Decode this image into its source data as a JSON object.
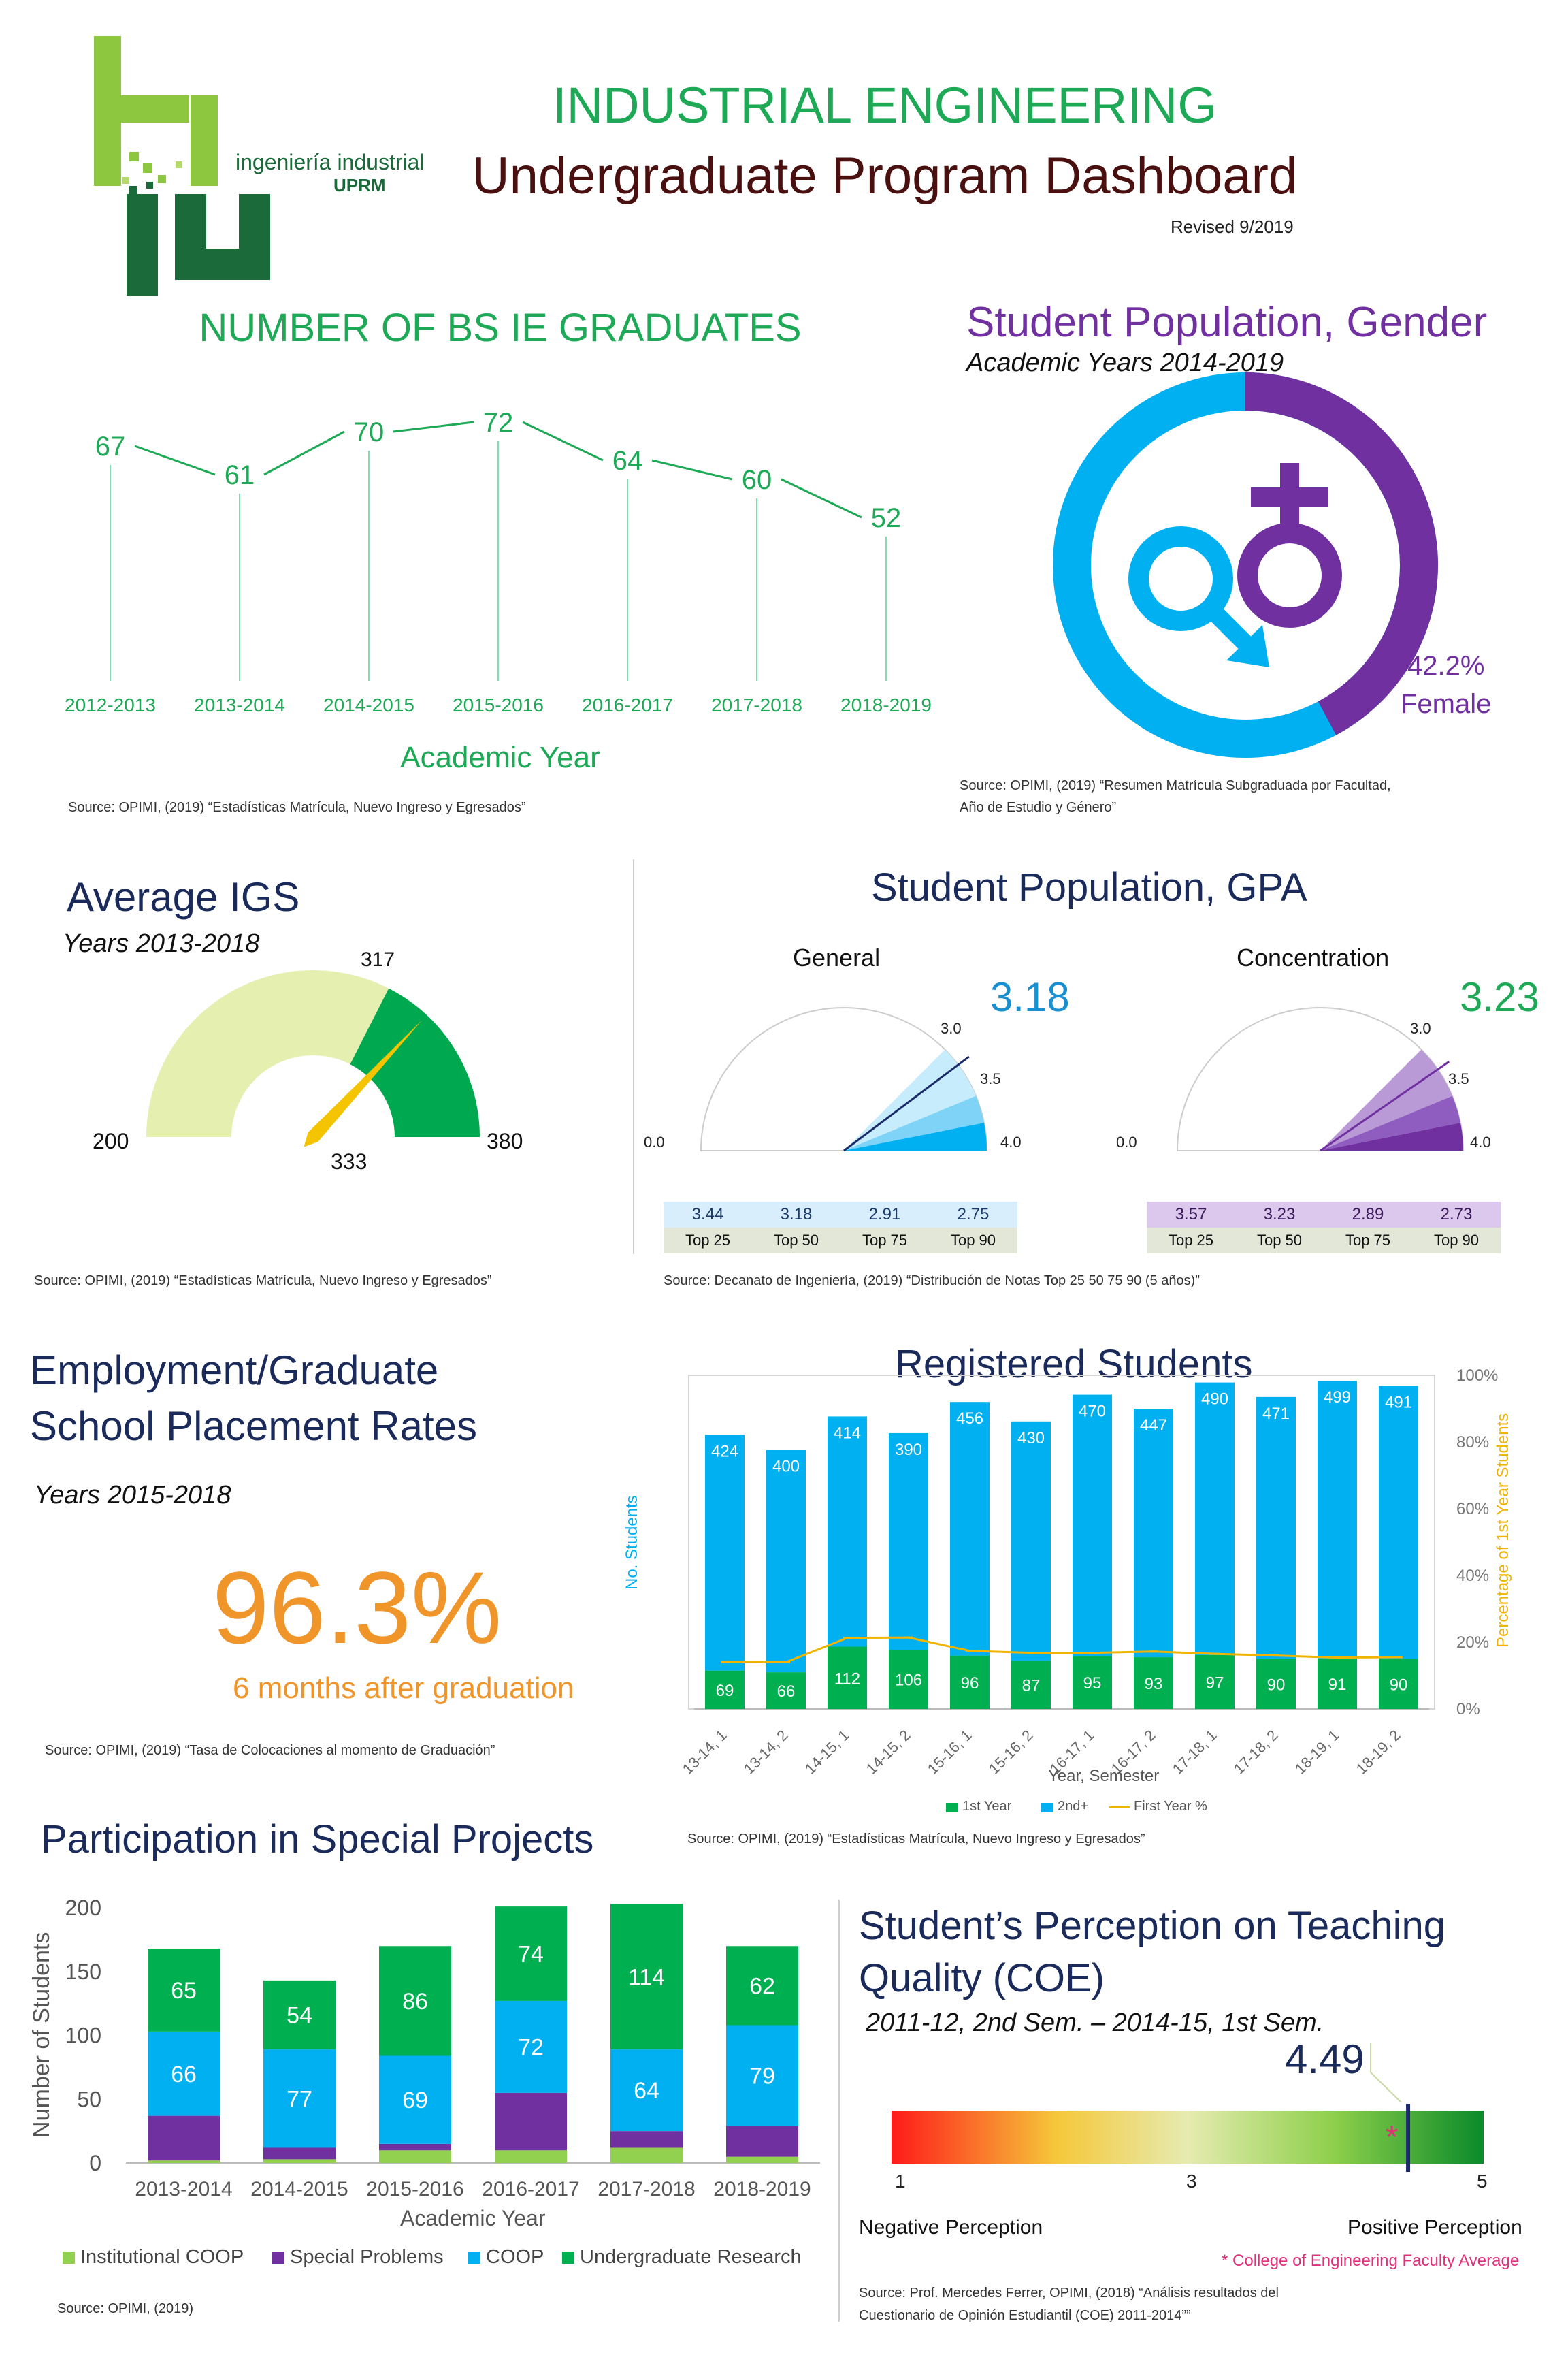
{
  "header": {
    "logo_text": "ingeniería industrial",
    "logo_sub": "UPRM",
    "title": "INDUSTRIAL ENGINEERING",
    "subtitle": "Undergraduate Program Dashboard",
    "revised": "Revised 9/2019"
  },
  "graduates": {
    "title": "NUMBER OF BS IE GRADUATES",
    "xlabel": "Academic Year",
    "source": "Source: OPIMI, (2019) “Estadísticas Matrícula, Nuevo Ingreso y Egresados”"
  },
  "gender": {
    "title": "Student Population, Gender",
    "subtitle": "Academic Years 2014-2019",
    "female_pct": "42.2%",
    "female_label": "Female",
    "source_line1": "Source: OPIMI, (2019) “Resumen Matrícula Subgraduada por Facultad,",
    "source_line2": "Año de Estudio y Género”",
    "colors": {
      "male": "#00b0f0",
      "female": "#7030a0"
    }
  },
  "igs": {
    "title": "Average IGS",
    "subtitle": "Years 2013-2018",
    "min": "200",
    "max": "380",
    "mark": "317",
    "value": "333",
    "source": "Source: OPIMI, (2019) “Estadísticas Matrícula, Nuevo Ingreso y Egresados”"
  },
  "gpa": {
    "title": "Student Population, GPA",
    "general_label": "General",
    "general_value": "3.18",
    "concentration_label": "Concentration",
    "concentration_value": "3.23",
    "tick_0": "0.0",
    "tick_30": "3.0",
    "tick_35": "3.5",
    "tick_40": "4.0",
    "percentile_labels": [
      "Top 25",
      "Top 50",
      "Top 75",
      "Top 90"
    ],
    "general_percentiles": [
      "3.44",
      "3.18",
      "2.91",
      "2.75"
    ],
    "concentration_percentiles": [
      "3.57",
      "3.23",
      "2.89",
      "2.73"
    ],
    "source": "Source: Decanato de Ingeniería, (2019) “Distribución de Notas Top 25 50 75 90 (5 años)”"
  },
  "employment": {
    "title_line1": "Employment/Graduate",
    "title_line2": "School Placement Rates",
    "subtitle": "Years 2015-2018",
    "rate": "96.3%",
    "caption": "6 months after graduation",
    "source": "Source: OPIMI, (2019) “Tasa de Colocaciones al momento de Graduación”"
  },
  "registered": {
    "title": "Registered Students",
    "ylabel": "No. Students",
    "y2label": "Percentage of 1st Year Students",
    "xlabel": "Year, Semester",
    "y2ticks": [
      "0%",
      "20%",
      "40%",
      "60%",
      "80%",
      "100%"
    ],
    "legend": [
      "1st Year",
      "2nd+",
      "First Year %"
    ],
    "source": "Source: OPIMI, (2019) “Estadísticas Matrícula, Nuevo Ingreso y Egresados”"
  },
  "projects": {
    "title": "Participation in Special Projects",
    "ylabel": "Number of Students",
    "xlabel": "Academic Year",
    "yticks": [
      "0",
      "50",
      "100",
      "150",
      "200"
    ],
    "legend": [
      "Institutional COOP",
      "Special Problems",
      "COOP",
      "Undergraduate Research"
    ],
    "source": "Source: OPIMI, (2019)"
  },
  "perception": {
    "title_line1": "Student’s Perception on Teaching",
    "title_line2": "Quality (COE)",
    "subtitle": "2011-12, 2nd Sem. – 2014-15, 1st Sem.",
    "value": "4.49",
    "tick_1": "1",
    "tick_3": "3",
    "tick_5": "5",
    "neg_label": "Negative Perception",
    "pos_label": "Positive Perception",
    "faculty_note": "* College of Engineering Faculty Average",
    "source_line1": "Source: Prof. Mercedes Ferrer, OPIMI, (2018) “Análisis resultados del",
    "source_line2": "Cuestionario de Opinión Estudiantil (COE) 2011-2014””"
  },
  "chart_data": [
    {
      "type": "line",
      "title": "NUMBER OF BS IE GRADUATES",
      "xlabel": "Academic Year",
      "ylabel": "",
      "categories": [
        "2012-2013",
        "2013-2014",
        "2014-2015",
        "2015-2016",
        "2016-2017",
        "2017-2018",
        "2018-2019"
      ],
      "values": [
        67,
        61,
        70,
        72,
        64,
        60,
        52
      ],
      "color": "#1ea956"
    },
    {
      "type": "pie",
      "title": "Student Population, Gender",
      "categories": [
        "Male",
        "Female"
      ],
      "values": [
        57.8,
        42.2
      ]
    },
    {
      "type": "bar",
      "title": "Average IGS",
      "gauge_min": 200,
      "gauge_max": 380,
      "gauge_mark": 317,
      "value": 333
    },
    {
      "type": "bar",
      "title": "Registered Students",
      "xlabel": "Year, Semester",
      "ylabel": "No. Students",
      "categories": [
        "13-14, 1",
        "13-14, 2",
        "14-15, 1",
        "14-15, 2",
        "15-16, 1",
        "15-16, 2",
        "16-17, 1",
        "16-17, 2",
        "17-18, 1",
        "17-18, 2",
        "18-19, 1",
        "18-19, 2"
      ],
      "series": [
        {
          "name": "1st Year",
          "values": [
            69,
            66,
            112,
            106,
            96,
            87,
            95,
            93,
            97,
            90,
            91,
            90
          ],
          "color": "#00b050"
        },
        {
          "name": "2nd+",
          "values": [
            424,
            400,
            414,
            390,
            456,
            430,
            470,
            447,
            490,
            471,
            499,
            491
          ],
          "color": "#00b0f0"
        },
        {
          "name": "First Year %",
          "values": [
            14,
            14,
            21.3,
            21.4,
            17.4,
            16.8,
            16.8,
            17.2,
            16.5,
            16,
            15.4,
            15.5
          ],
          "color": "#f0b400",
          "axis": "right"
        }
      ],
      "ylim": [
        0,
        600
      ],
      "y2lim": [
        0,
        100
      ]
    },
    {
      "type": "bar",
      "title": "Participation in Special Projects",
      "xlabel": "Academic Year",
      "ylabel": "Number of Students",
      "categories": [
        "2013-2014",
        "2014-2015",
        "2015-2016",
        "2016-2017",
        "2017-2018",
        "2018-2019"
      ],
      "series": [
        {
          "name": "Institutional COOP",
          "values": [
            2,
            3,
            10,
            10,
            12,
            5
          ],
          "color": "#92d050"
        },
        {
          "name": "Special Problems",
          "values": [
            35,
            9,
            5,
            45,
            13,
            24
          ],
          "color": "#7030a0"
        },
        {
          "name": "COOP",
          "values": [
            66,
            77,
            69,
            72,
            64,
            79
          ],
          "color": "#00b0f0"
        },
        {
          "name": "Undergraduate Research",
          "values": [
            65,
            54,
            86,
            74,
            114,
            62
          ],
          "color": "#00b050"
        }
      ],
      "ylim": [
        0,
        200
      ]
    }
  ]
}
